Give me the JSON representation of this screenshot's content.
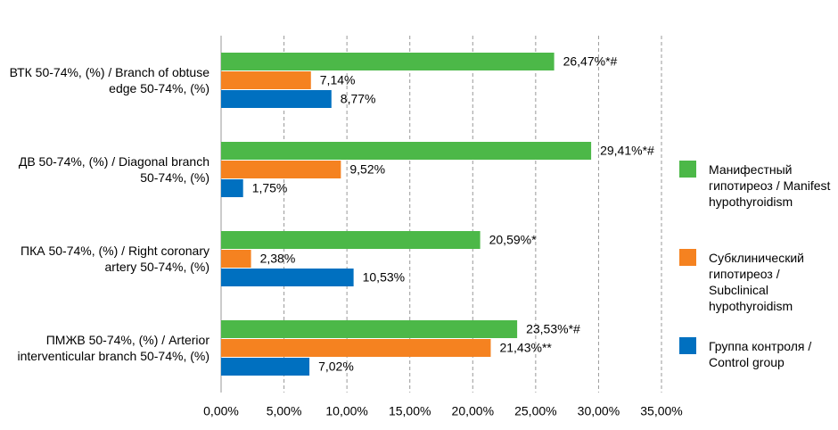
{
  "chart_data": {
    "type": "hbar",
    "categories": [
      "ВТК 50-74%, (%) / Branch of obtuse edge 50-74%, (%)",
      "ДВ 50-74%, (%) / Diagonal branch 50-74%, (%)",
      "ПКА 50-74%, (%) / Right coronary artery 50-74%, (%)",
      "ПМЖВ 50-74%, (%) / Arterior interventicular branch 50-74%, (%)"
    ],
    "series": [
      {
        "name": "Манифестный гипотиреоз / Manifest hypothyroidism",
        "color": "#4cb848",
        "values": [
          26.47,
          29.41,
          20.59,
          23.53
        ],
        "value_labels": [
          "26,47%*#",
          "29,41%*#",
          "20,59%*",
          "23,53%*#"
        ]
      },
      {
        "name": "Субклинический гипотиреоз / Subclinical hypothyroidism",
        "color": "#f58220",
        "values": [
          7.14,
          9.52,
          2.38,
          21.43
        ],
        "value_labels": [
          "7,14%",
          "9,52%",
          "2,38%",
          "21,43%**"
        ]
      },
      {
        "name": "Группа контроля / Control group",
        "color": "#0070c0",
        "values": [
          8.77,
          1.75,
          10.53,
          7.02
        ],
        "value_labels": [
          "8,77%",
          "1,75%",
          "10,53%",
          "7,02%"
        ]
      }
    ],
    "xlim": [
      0,
      35
    ],
    "xticks": [
      {
        "value": 0,
        "label": "0,00%"
      },
      {
        "value": 5,
        "label": "5,00%"
      },
      {
        "value": 10,
        "label": "10,00%"
      },
      {
        "value": 15,
        "label": "15,00%"
      },
      {
        "value": 20,
        "label": "20,00%"
      },
      {
        "value": 25,
        "label": "25,00%"
      },
      {
        "value": 30,
        "label": "30,00%"
      },
      {
        "value": 35,
        "label": "35,00%"
      }
    ],
    "grid": true,
    "legend": "right"
  }
}
